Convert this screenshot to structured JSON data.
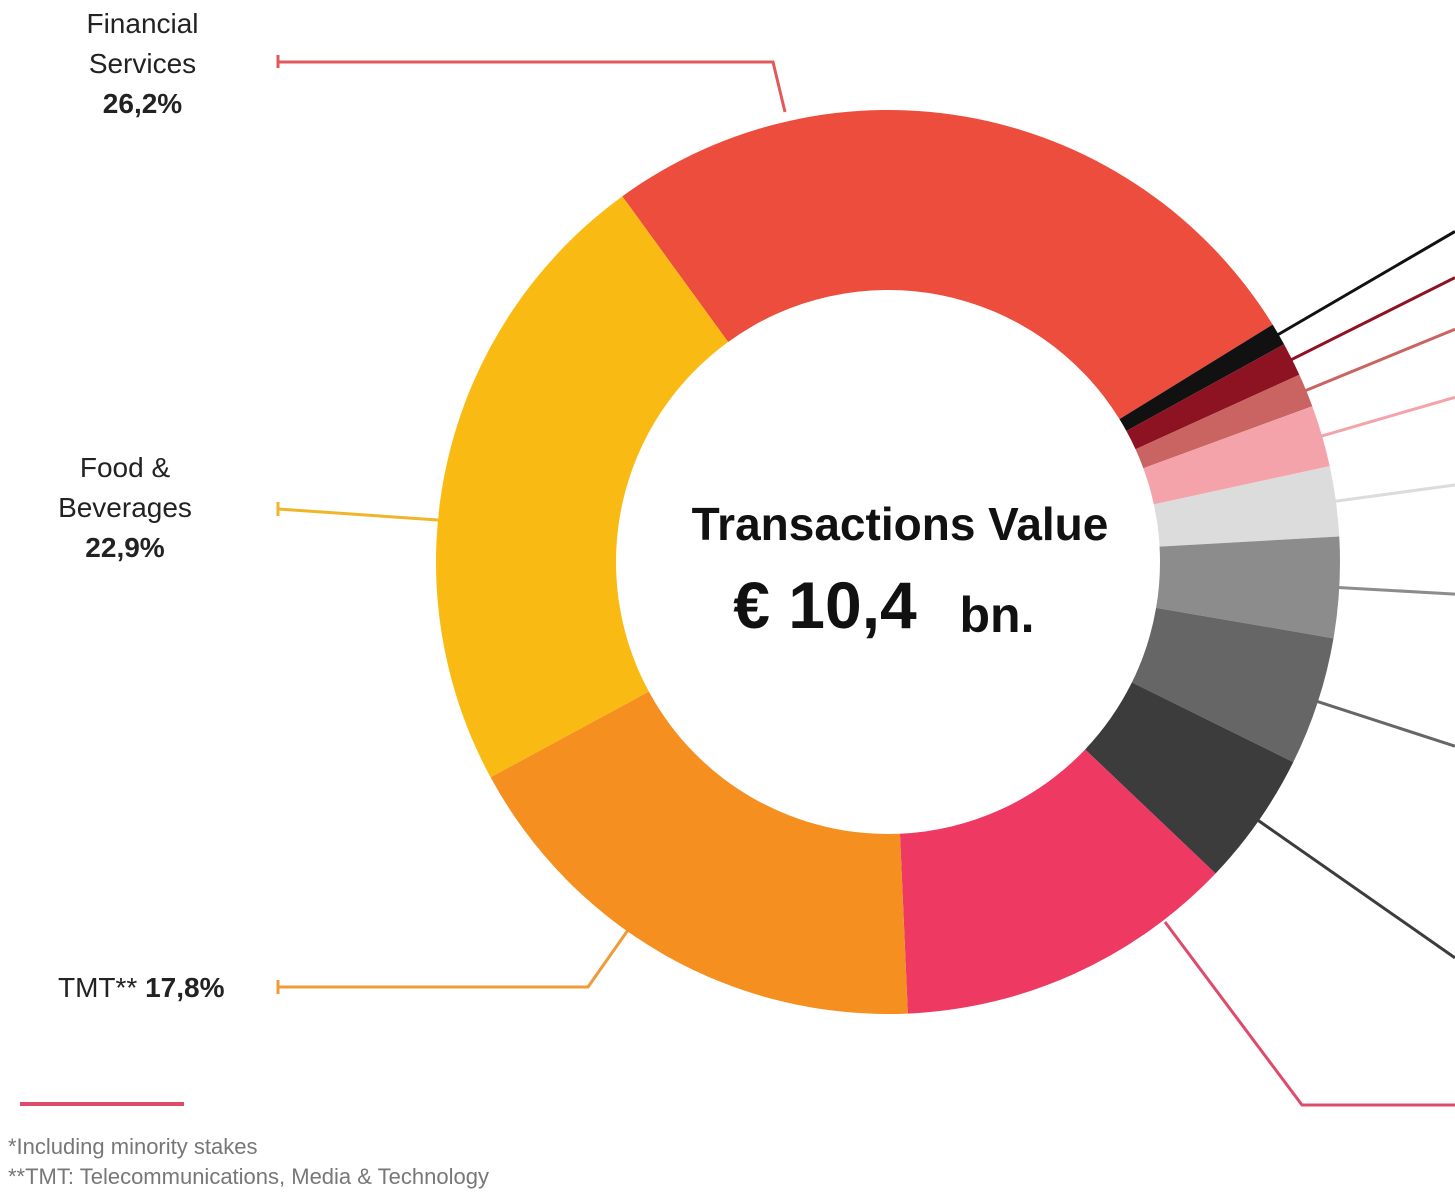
{
  "chart_data": {
    "type": "donut",
    "center_title": "Transactions Value",
    "center_value": "€ 10,4",
    "center_unit": "bn.",
    "categories": [
      "Financial Services",
      null,
      null,
      null,
      null,
      null,
      null,
      null,
      null,
      null,
      "TMT**",
      "Food & Beverages"
    ],
    "values": [
      26.2,
      0.8,
      1.2,
      1.2,
      2.2,
      2.5,
      3.6,
      4.6,
      4.8,
      12.2,
      17.8,
      22.9
    ],
    "value_labels": [
      "26,2%",
      null,
      null,
      null,
      null,
      null,
      null,
      null,
      null,
      null,
      "17,8%",
      "22,9%"
    ],
    "colors": [
      "#ec4d3c",
      "#111111",
      "#8e1322",
      "#c96462",
      "#f4a3aa",
      "#dcdcdc",
      "#8c8c8c",
      "#666666",
      "#3c3c3c",
      "#ee3a63",
      "#f48f20",
      "#f9bb13"
    ],
    "footnotes": [
      "*Including minority stakes",
      "**TMT: Telecommunications, Media & Technology"
    ]
  }
}
